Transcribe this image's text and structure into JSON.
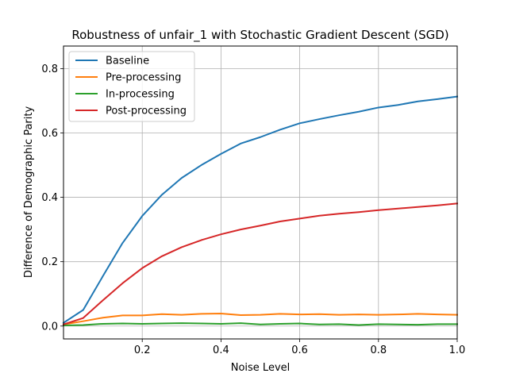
{
  "chart_data": {
    "type": "line",
    "title": "Robustness of unfair_1 with Stochastic Gradient Descent (SGD)",
    "xlabel": "Noise Level",
    "ylabel": "Difference of Demographic Parity",
    "xlim": [
      0.0,
      1.0
    ],
    "ylim": [
      -0.04,
      0.87
    ],
    "xticks": [
      0.2,
      0.4,
      0.6,
      0.8,
      1.0
    ],
    "xtick_labels": [
      "0.2",
      "0.4",
      "0.6",
      "0.8",
      "1.0"
    ],
    "yticks": [
      0.0,
      0.2,
      0.4,
      0.6,
      0.8
    ],
    "ytick_labels": [
      "0.0",
      "0.2",
      "0.4",
      "0.6",
      "0.8"
    ],
    "grid": true,
    "legend_position": "top-left",
    "x": [
      0.0,
      0.05,
      0.1,
      0.15,
      0.2,
      0.25,
      0.3,
      0.35,
      0.4,
      0.45,
      0.5,
      0.55,
      0.6,
      0.65,
      0.7,
      0.75,
      0.8,
      0.85,
      0.9,
      0.95,
      1.0
    ],
    "series": [
      {
        "name": "Baseline",
        "color": "#1f77b4",
        "values": [
          0.01,
          0.05,
          0.155,
          0.258,
          0.342,
          0.408,
          0.46,
          0.5,
          0.535,
          0.567,
          0.587,
          0.61,
          0.63,
          0.643,
          0.655,
          0.666,
          0.679,
          0.687,
          0.698,
          0.705,
          0.713
        ]
      },
      {
        "name": "Pre-processing",
        "color": "#ff7f0e",
        "values": [
          0.005,
          0.015,
          0.026,
          0.033,
          0.033,
          0.037,
          0.035,
          0.038,
          0.039,
          0.034,
          0.035,
          0.038,
          0.036,
          0.037,
          0.035,
          0.036,
          0.035,
          0.036,
          0.038,
          0.036,
          0.035
        ]
      },
      {
        "name": "In-processing",
        "color": "#2ca02c",
        "values": [
          0.002,
          0.003,
          0.007,
          0.008,
          0.007,
          0.008,
          0.009,
          0.008,
          0.007,
          0.009,
          0.005,
          0.007,
          0.008,
          0.005,
          0.006,
          0.003,
          0.006,
          0.005,
          0.004,
          0.006,
          0.006
        ]
      },
      {
        "name": "Post-processing",
        "color": "#d62728",
        "values": [
          0.005,
          0.025,
          0.08,
          0.133,
          0.18,
          0.217,
          0.245,
          0.267,
          0.285,
          0.3,
          0.312,
          0.325,
          0.334,
          0.343,
          0.349,
          0.354,
          0.36,
          0.365,
          0.37,
          0.375,
          0.381
        ]
      }
    ]
  }
}
